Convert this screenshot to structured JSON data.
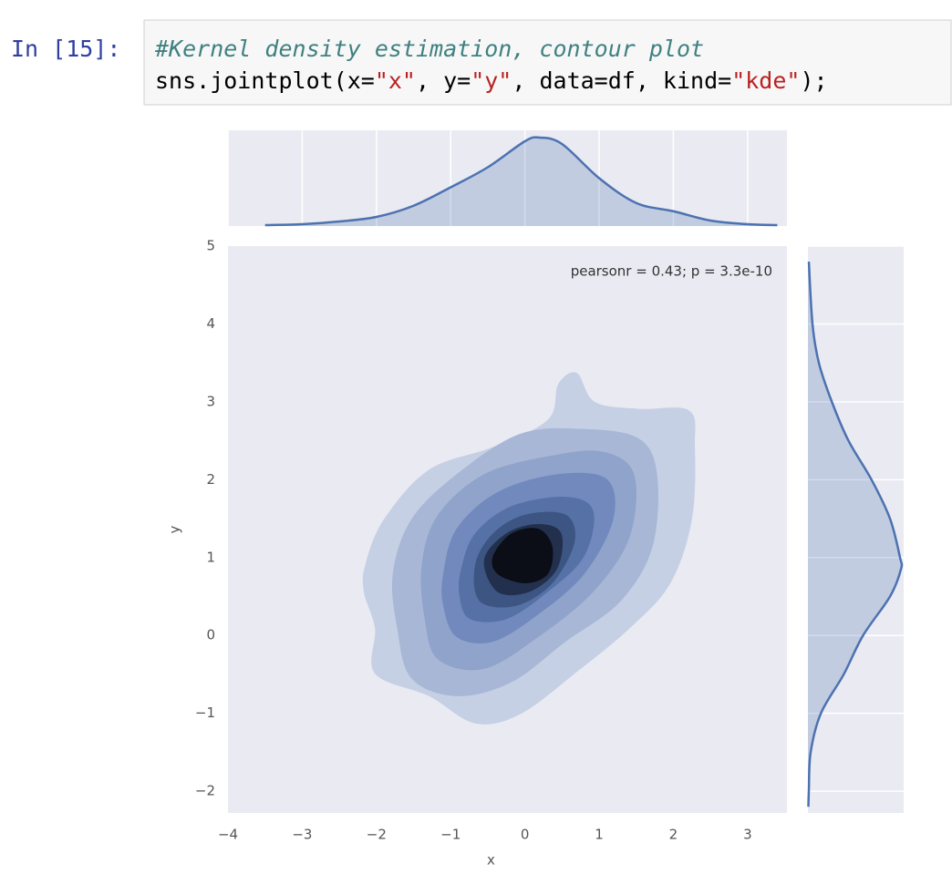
{
  "cell": {
    "prompt": "In [15]:",
    "comment": "#Kernel density estimation, contour plot",
    "tokens": [
      "sns.jointplot(x=",
      "\"x\"",
      ", y=",
      "\"y\"",
      ", data=df, kind=",
      "\"kde\"",
      ");"
    ]
  },
  "chart_data": {
    "type": "kde_joint",
    "annotation": "pearsonr = 0.43; p = 3.3e-10",
    "x_label": "x",
    "y_label": "y",
    "color": "#4c72b0",
    "xlim": [
      -4,
      3.53
    ],
    "xticks": [
      {
        "value": -4,
        "label": "−4"
      },
      {
        "value": -3,
        "label": "−3"
      },
      {
        "value": -2,
        "label": "−2"
      },
      {
        "value": -1,
        "label": "−1"
      },
      0,
      1,
      2,
      3
    ],
    "ylim": [
      -2.28,
      5
    ],
    "yticks": [
      {
        "value": -2,
        "label": "−2"
      },
      {
        "value": -1,
        "label": "−1"
      },
      0,
      1,
      2,
      3,
      4,
      5
    ],
    "contours": [
      {
        "color": "#c6d0e4",
        "x": [
          -2.15,
          -1.9,
          -1.29,
          -0.43,
          0.31,
          0.45,
          0.7,
          0.94,
          1.53,
          2.21,
          2.29,
          2.25,
          1.96,
          1.41,
          0.67,
          -0.06,
          -0.67,
          -1.29,
          -2.02,
          -2.02,
          -2.17
        ],
        "y": [
          0.91,
          1.49,
          2.13,
          2.42,
          2.77,
          3.23,
          3.37,
          3.0,
          2.91,
          2.89,
          2.42,
          1.49,
          0.67,
          0.09,
          -0.49,
          -1.01,
          -1.13,
          -0.78,
          -0.49,
          0.09,
          0.56
        ]
      },
      {
        "color": "#a8b7d6",
        "x": [
          -1.78,
          -1.53,
          -0.92,
          -0.06,
          0.8,
          1.53,
          1.78,
          1.72,
          1.29,
          0.55,
          -0.18,
          -0.92,
          -1.53,
          -1.72
        ],
        "y": [
          0.79,
          1.49,
          2.07,
          2.59,
          2.65,
          2.53,
          2.07,
          1.14,
          0.44,
          -0.08,
          -0.6,
          -0.78,
          -0.55,
          0.09
        ]
      },
      {
        "color": "#8fa3cb",
        "x": [
          -1.39,
          -1.17,
          -0.55,
          0.31,
          1.04,
          1.47,
          1.41,
          0.92,
          0.18,
          -0.55,
          -1.17,
          -1.35
        ],
        "y": [
          0.91,
          1.55,
          2.07,
          2.3,
          2.36,
          2.07,
          1.26,
          0.56,
          -0.02,
          -0.43,
          -0.31,
          0.21
        ]
      },
      {
        "color": "#7189bd",
        "x": [
          -1.1,
          -0.92,
          -0.37,
          0.43,
          1.1,
          1.19,
          0.8,
          0.18,
          -0.43,
          -0.92,
          -1.1
        ],
        "y": [
          0.79,
          1.37,
          1.84,
          2.07,
          2.01,
          1.49,
          0.79,
          0.27,
          -0.08,
          -0.02,
          0.38
        ]
      },
      {
        "color": "#5671a6",
        "x": [
          -0.86,
          -0.67,
          -0.18,
          0.55,
          0.92,
          0.8,
          0.31,
          -0.25,
          -0.74,
          -0.88
        ],
        "y": [
          0.85,
          1.31,
          1.66,
          1.78,
          1.6,
          1.02,
          0.56,
          0.21,
          0.21,
          0.5
        ]
      },
      {
        "color": "#3d5582",
        "x": [
          -0.67,
          -0.43,
          0,
          0.55,
          0.67,
          0.37,
          -0.12,
          -0.61
        ],
        "y": [
          0.91,
          1.31,
          1.55,
          1.55,
          1.2,
          0.67,
          0.38,
          0.44
        ]
      },
      {
        "color": "#22304d",
        "x": [
          -0.55,
          -0.25,
          0.18,
          0.49,
          0.43,
          0.06,
          -0.37
        ],
        "y": [
          0.97,
          1.31,
          1.43,
          1.31,
          0.85,
          0.56,
          0.56
        ]
      },
      {
        "color": "#0b0e16",
        "x": [
          -0.43,
          -0.18,
          0.18,
          0.37,
          0.31,
          0,
          -0.37
        ],
        "y": [
          1.02,
          1.31,
          1.37,
          1.14,
          0.79,
          0.67,
          0.79
        ]
      }
    ],
    "density_lim": [
      0,
      0.42
    ],
    "marginal_x": {
      "x": [
        -3.5,
        -3,
        -2.5,
        -2,
        -1.5,
        -1,
        -0.5,
        0,
        0.2,
        0.5,
        1,
        1.5,
        2,
        2.5,
        3,
        3.4
      ],
      "density": [
        0.004,
        0.008,
        0.02,
        0.04,
        0.089,
        0.17,
        0.258,
        0.372,
        0.388,
        0.36,
        0.21,
        0.101,
        0.065,
        0.024,
        0.008,
        0.004
      ]
    },
    "marginal_y": {
      "y": [
        4.8,
        4,
        3.5,
        3,
        2.5,
        2,
        1.5,
        1,
        0.85,
        0.5,
        0,
        -0.5,
        -1,
        -1.5,
        -2,
        -2.2
      ],
      "density": [
        0.004,
        0.02,
        0.048,
        0.105,
        0.178,
        0.279,
        0.36,
        0.404,
        0.408,
        0.36,
        0.242,
        0.157,
        0.057,
        0.012,
        0.004,
        0.002
      ]
    }
  }
}
